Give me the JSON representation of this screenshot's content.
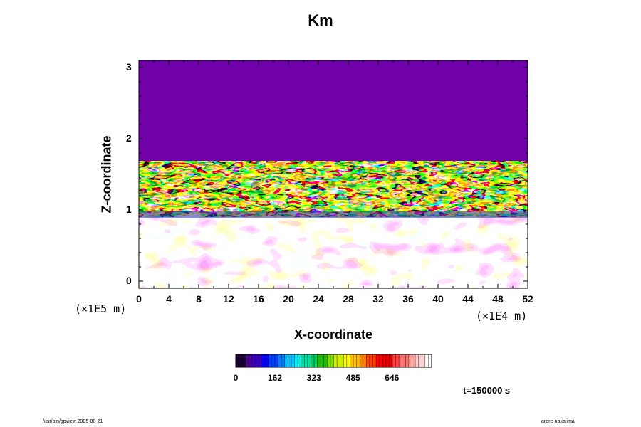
{
  "chart_data": {
    "type": "heatmap",
    "title": "Km",
    "xlabel": "X-coordinate",
    "ylabel": "Z-coordinate",
    "x_scale_label": "(×1E4 m)",
    "y_scale_label": "(×1E5 m)",
    "x_ticks": [
      "0",
      "4",
      "8",
      "12",
      "16",
      "20",
      "24",
      "28",
      "32",
      "36",
      "40",
      "44",
      "48",
      "52"
    ],
    "y_ticks": [
      "0",
      "1",
      "2",
      "3"
    ],
    "xlim": [
      0,
      52
    ],
    "ylim": [
      -0.1,
      3.1
    ],
    "colorbar": {
      "ticks": [
        "0",
        "162",
        "323",
        "485",
        "646"
      ],
      "range": [
        0,
        810
      ],
      "colors": [
        "#1a0030",
        "#4a0090",
        "#3a00c8",
        "#0000ff",
        "#0040ff",
        "#0080ff",
        "#00c0ff",
        "#00f0f0",
        "#00e0a0",
        "#00d060",
        "#20c000",
        "#80e000",
        "#d0f000",
        "#ffff00",
        "#ffc000",
        "#ff8000",
        "#ff4000",
        "#ff0000",
        "#e80000",
        "#ff4040",
        "#ff7070",
        "#ffa0a0",
        "#ffd0d0",
        "#ffffff"
      ]
    },
    "regions": [
      {
        "z_range": [
          1.7,
          3.1
        ],
        "value": "uniform low (purple)"
      },
      {
        "z_range": [
          0.9,
          1.7
        ],
        "value": "highly variable, full range"
      },
      {
        "z_range": [
          -0.1,
          0.9
        ],
        "value": "mostly 0 to moderate-high, patches"
      }
    ],
    "time_label": "t=150000 s"
  },
  "footer": {
    "left": "/usr/bin/gpview 2005-08-21",
    "right": "arare-nakajima"
  }
}
